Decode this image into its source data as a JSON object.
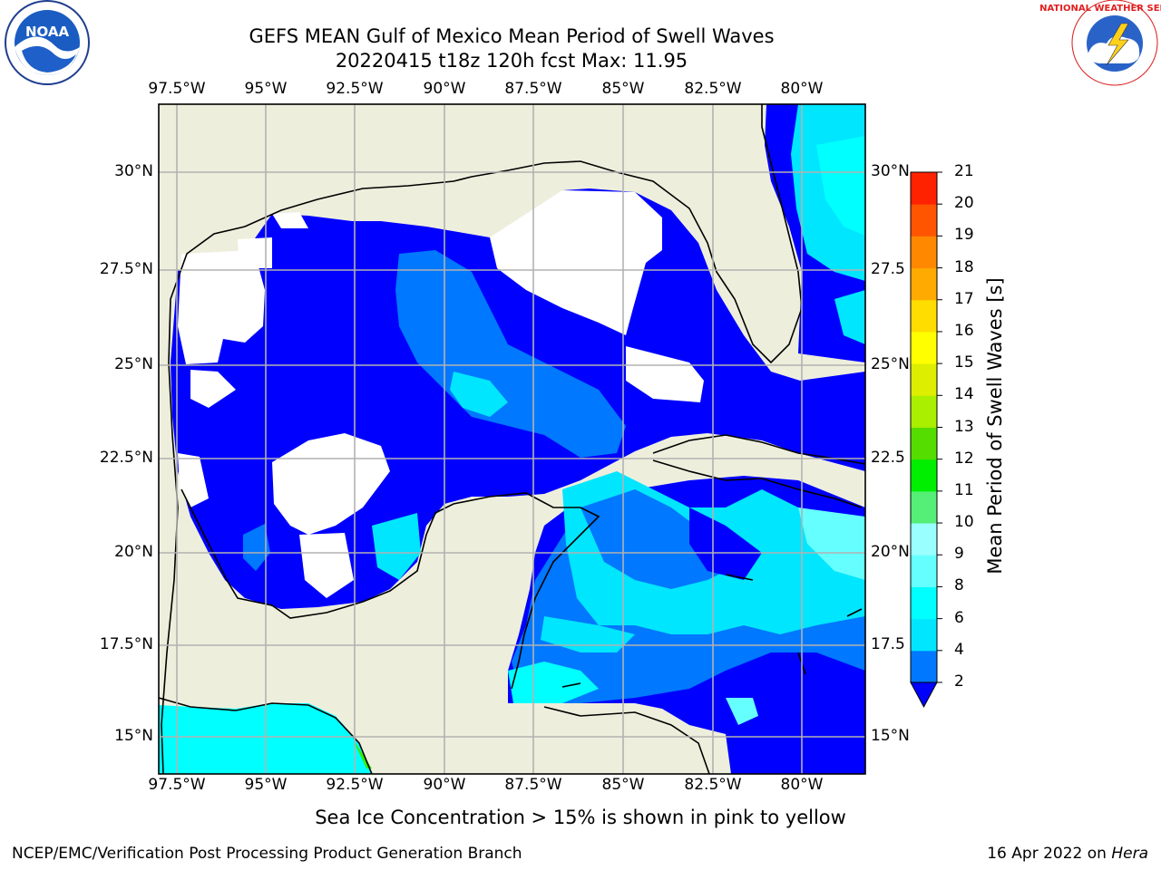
{
  "title": {
    "line1": "GEFS MEAN Gulf of Mexico Mean Period of Swell Waves",
    "line2": "20220415 t18z 120h fcst   Max: 11.95"
  },
  "logos": {
    "left": "NOAA",
    "right": "NATIONAL WEATHER SERVICE"
  },
  "axes": {
    "lon_labels": [
      "97.5°W",
      "95°W",
      "92.5°W",
      "90°W",
      "87.5°W",
      "85°W",
      "82.5°W",
      "80°W"
    ],
    "lat_labels": [
      "30°N",
      "27.5°N",
      "25°N",
      "22.5°N",
      "20°N",
      "17.5°N",
      "15°N"
    ],
    "lat_labels_right": [
      "30°N",
      "27.5",
      "25°N",
      "22.5",
      "20°N",
      "17.5",
      "15°N"
    ]
  },
  "colorbar": {
    "title": "Mean Period of Swell Waves [s]",
    "levels": [
      "2",
      "4",
      "6",
      "8",
      "9",
      "10",
      "11",
      "12",
      "13",
      "14",
      "15",
      "16",
      "17",
      "18",
      "19",
      "20",
      "21"
    ],
    "colors": [
      "#0000ff",
      "#0078ff",
      "#00e6ff",
      "#00ffff",
      "#66ffff",
      "#99ffff",
      "#55ee77",
      "#00ee00",
      "#55dd00",
      "#aaee00",
      "#ddee00",
      "#ffff00",
      "#ffdd00",
      "#ffaa00",
      "#ff8800",
      "#ff5500",
      "#ff2200",
      "#ff0000"
    ]
  },
  "note": "Sea Ice Concentration > 15% is shown in pink to yellow",
  "footer": {
    "left": "NCEP/EMC/Verification Post Processing Product Generation Branch",
    "right_date": "16 Apr 2022 on ",
    "right_machine": "Hera"
  }
}
